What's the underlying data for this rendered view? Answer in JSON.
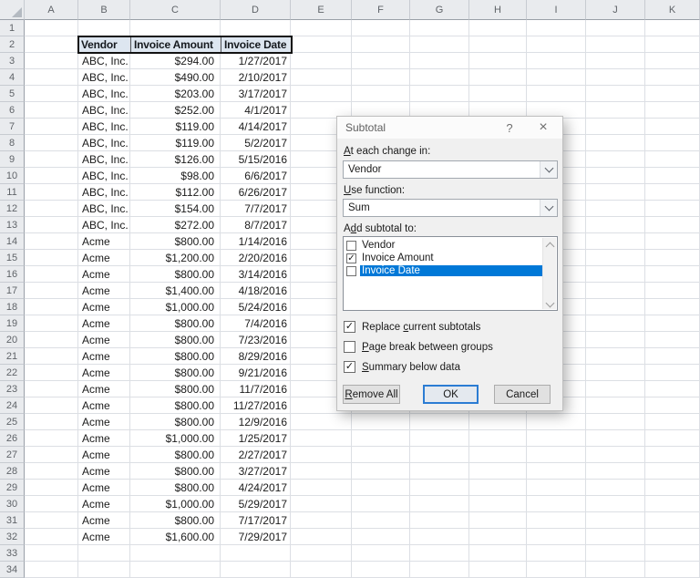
{
  "spreadsheet": {
    "column_headers": [
      "A",
      "B",
      "C",
      "D",
      "E",
      "F",
      "G",
      "H",
      "I",
      "J",
      "K"
    ],
    "row_count": 34,
    "table": {
      "header_row": 2,
      "headers": [
        "Vendor",
        "Invoice Amount",
        "Invoice Date"
      ],
      "rows": [
        {
          "row": 3,
          "vendor": "ABC, Inc.",
          "amount": "$294.00",
          "date": "1/27/2017"
        },
        {
          "row": 4,
          "vendor": "ABC, Inc.",
          "amount": "$490.00",
          "date": "2/10/2017"
        },
        {
          "row": 5,
          "vendor": "ABC, Inc.",
          "amount": "$203.00",
          "date": "3/17/2017"
        },
        {
          "row": 6,
          "vendor": "ABC, Inc.",
          "amount": "$252.00",
          "date": "4/1/2017"
        },
        {
          "row": 7,
          "vendor": "ABC, Inc.",
          "amount": "$119.00",
          "date": "4/14/2017"
        },
        {
          "row": 8,
          "vendor": "ABC, Inc.",
          "amount": "$119.00",
          "date": "5/2/2017"
        },
        {
          "row": 9,
          "vendor": "ABC, Inc.",
          "amount": "$126.00",
          "date": "5/15/2016"
        },
        {
          "row": 10,
          "vendor": "ABC, Inc.",
          "amount": "$98.00",
          "date": "6/6/2017"
        },
        {
          "row": 11,
          "vendor": "ABC, Inc.",
          "amount": "$112.00",
          "date": "6/26/2017"
        },
        {
          "row": 12,
          "vendor": "ABC, Inc.",
          "amount": "$154.00",
          "date": "7/7/2017"
        },
        {
          "row": 13,
          "vendor": "ABC, Inc.",
          "amount": "$272.00",
          "date": "8/7/2017"
        },
        {
          "row": 14,
          "vendor": "Acme",
          "amount": "$800.00",
          "date": "1/14/2016"
        },
        {
          "row": 15,
          "vendor": "Acme",
          "amount": "$1,200.00",
          "date": "2/20/2016"
        },
        {
          "row": 16,
          "vendor": "Acme",
          "amount": "$800.00",
          "date": "3/14/2016"
        },
        {
          "row": 17,
          "vendor": "Acme",
          "amount": "$1,400.00",
          "date": "4/18/2016"
        },
        {
          "row": 18,
          "vendor": "Acme",
          "amount": "$1,000.00",
          "date": "5/24/2016"
        },
        {
          "row": 19,
          "vendor": "Acme",
          "amount": "$800.00",
          "date": "7/4/2016"
        },
        {
          "row": 20,
          "vendor": "Acme",
          "amount": "$800.00",
          "date": "7/23/2016"
        },
        {
          "row": 21,
          "vendor": "Acme",
          "amount": "$800.00",
          "date": "8/29/2016"
        },
        {
          "row": 22,
          "vendor": "Acme",
          "amount": "$800.00",
          "date": "9/21/2016"
        },
        {
          "row": 23,
          "vendor": "Acme",
          "amount": "$800.00",
          "date": "11/7/2016"
        },
        {
          "row": 24,
          "vendor": "Acme",
          "amount": "$800.00",
          "date": "11/27/2016"
        },
        {
          "row": 25,
          "vendor": "Acme",
          "amount": "$800.00",
          "date": "12/9/2016"
        },
        {
          "row": 26,
          "vendor": "Acme",
          "amount": "$1,000.00",
          "date": "1/25/2017"
        },
        {
          "row": 27,
          "vendor": "Acme",
          "amount": "$800.00",
          "date": "2/27/2017"
        },
        {
          "row": 28,
          "vendor": "Acme",
          "amount": "$800.00",
          "date": "3/27/2017"
        },
        {
          "row": 29,
          "vendor": "Acme",
          "amount": "$800.00",
          "date": "4/24/2017"
        },
        {
          "row": 30,
          "vendor": "Acme",
          "amount": "$1,000.00",
          "date": "5/29/2017"
        },
        {
          "row": 31,
          "vendor": "Acme",
          "amount": "$800.00",
          "date": "7/17/2017"
        },
        {
          "row": 32,
          "vendor": "Acme",
          "amount": "$1,600.00",
          "date": "7/29/2017"
        }
      ]
    }
  },
  "dialog": {
    "title": "Subtotal",
    "help_glyph": "?",
    "close_glyph": "×",
    "at_each_change": {
      "pre": "",
      "key": "A",
      "post": "t each change in:",
      "value": "Vendor"
    },
    "use_function": {
      "pre": "",
      "key": "U",
      "post": "se function:",
      "value": "Sum"
    },
    "add_subtotal": {
      "pre": "A",
      "key": "d",
      "post": "d subtotal to:"
    },
    "subtotal_items": [
      {
        "label": "Vendor",
        "checked": false,
        "selected": false
      },
      {
        "label": "Invoice Amount",
        "checked": true,
        "selected": false
      },
      {
        "label": "Invoice Date",
        "checked": false,
        "selected": true
      }
    ],
    "options": [
      {
        "pre": "Replace ",
        "key": "c",
        "post": "urrent subtotals",
        "checked": true
      },
      {
        "pre": "",
        "key": "P",
        "post": "age break between groups",
        "checked": false
      },
      {
        "pre": "",
        "key": "S",
        "post": "ummary below data",
        "checked": true
      }
    ],
    "buttons": {
      "remove_all": {
        "pre": "",
        "key": "R",
        "post": "emove All"
      },
      "ok": "OK",
      "cancel": "Cancel"
    },
    "check_glyph": "✓"
  },
  "colors": {
    "accent_blue": "#0078d7",
    "table_header_fill": "#dde6f0",
    "selection_text": "#ffffff",
    "dialog_bg": "#f0f0f0"
  }
}
